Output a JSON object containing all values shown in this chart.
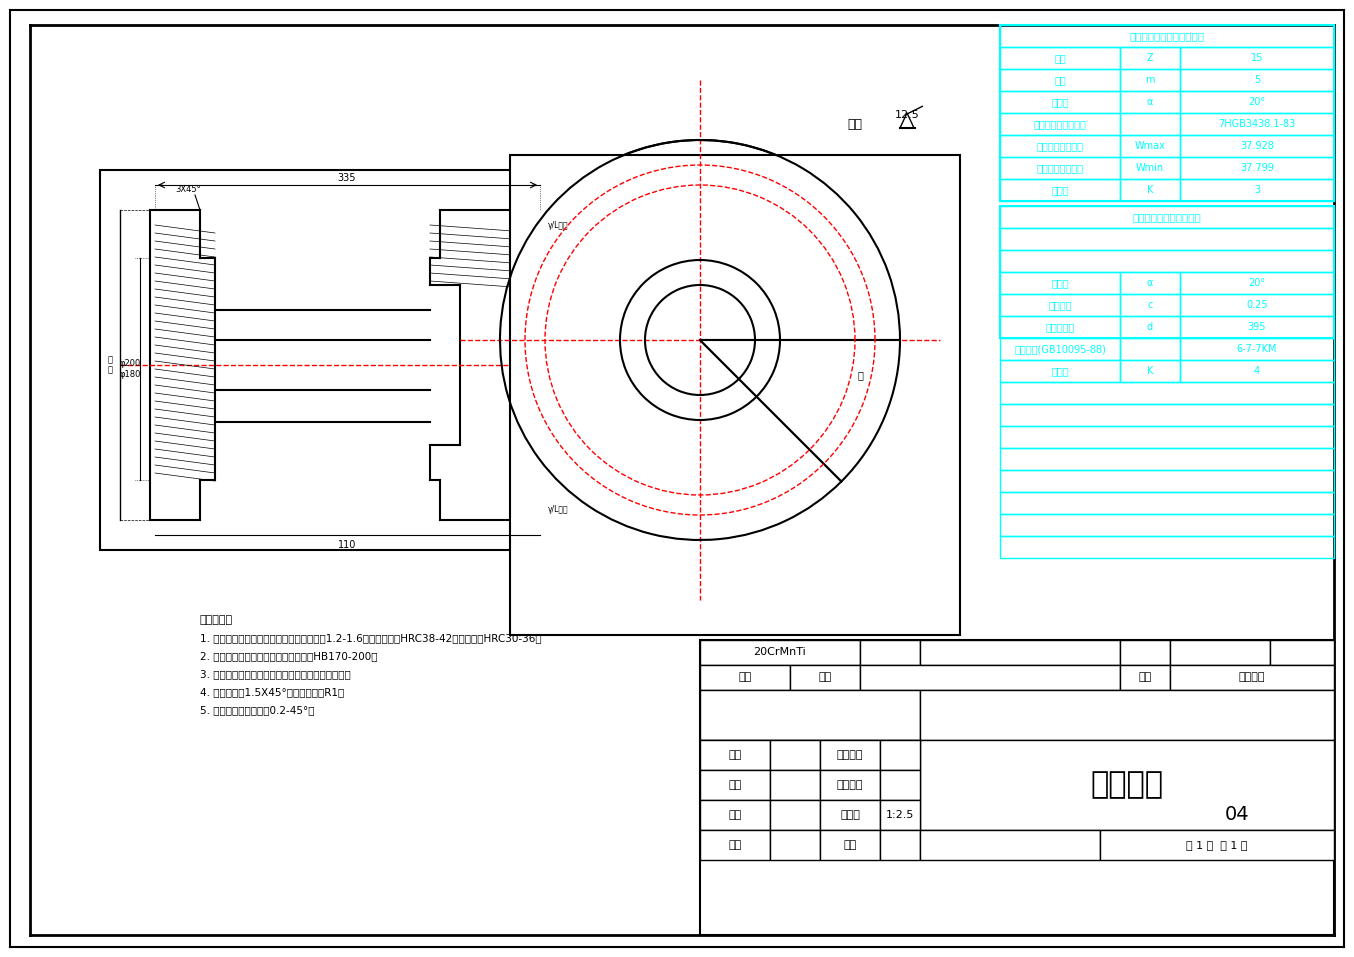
{
  "bg_color": "#ffffff",
  "border_color": "#000000",
  "cyan_color": "#00FFFF",
  "red_color": "#FF0000",
  "drawing_title": "大直齿轮",
  "drawing_number": "04",
  "scale": "1:2.5",
  "material": "20CrMnTi",
  "title_block": {
    "labels": [
      "材料",
      "重量",
      "件号",
      "图配编号",
      "审核",
      "工程编号",
      "组长",
      "设计阶段",
      "审核",
      "比例尺",
      "设计",
      "制图"
    ],
    "page_info": "共 1 页 第 1 页"
  },
  "tech_table_title": "圆柱直齿渐开线内花键参数",
  "tech_table_rows": [
    [
      "齿数",
      "Z",
      "15"
    ],
    [
      "模数",
      "m",
      "5"
    ],
    [
      "压力角",
      "α",
      "20°"
    ],
    [
      "公差等级及配合类别",
      "",
      "7HGB3438.1-83"
    ],
    [
      "公法弦长度最大値",
      "Wmax",
      "37.928"
    ],
    [
      "公法弦长度最小値",
      "Wmin",
      "37.799"
    ],
    [
      "跨齿数",
      "K",
      "3"
    ]
  ],
  "gear_table_title": "圆柱齿轮参数公差和偶数",
  "gear_table_rows": [
    [
      "压力角",
      "α",
      "20°"
    ],
    [
      "顶隙系数",
      "c",
      "0.25"
    ],
    [
      "分度圆直径",
      "d",
      "395"
    ],
    [
      "精度等级(GB10095-88)",
      "",
      "6-7-7KM"
    ],
    [
      "跨齿数",
      "K",
      "4"
    ]
  ],
  "tech_notes": [
    "技术要求：",
    "1. 外齿面渗硟硬化齿天，渗硟硬化层深度为1.2-1.6，表面硬度为HRC38-42，芯部硬度HRC30-36；",
    "2. 花键不硕火，正火后加工矫正，硬度HB170-200；",
    "3. 齿岖吹削图进行齿形根检查，不得有齿根戟裂芙；",
    "4. 未注明倒角1.5X45°，尺寸剪屏角R1；",
    "5. 去毛刺，锐边去尖觖0.2-45°。"
  ],
  "surface_roughness": "12.5",
  "qita": "其余"
}
